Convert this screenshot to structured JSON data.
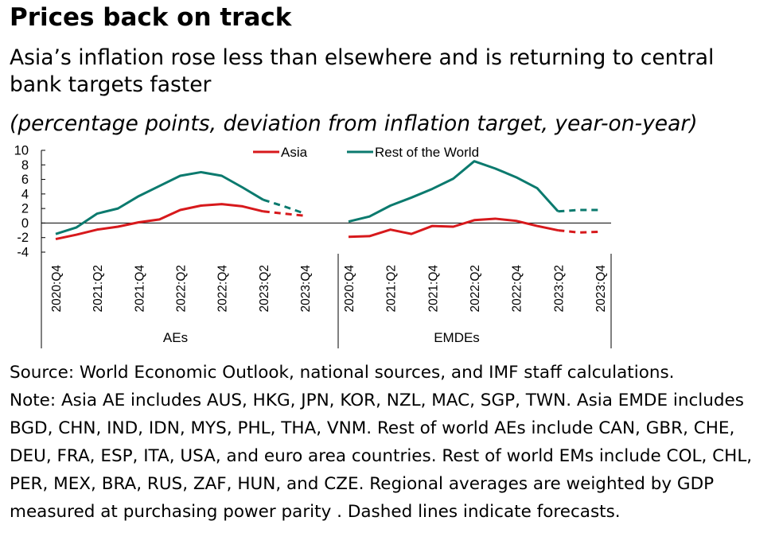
{
  "title": "Prices back on track",
  "subtitle": "Asia’s inflation rose less than elsewhere and is returning to central bank targets faster",
  "units": "(percentage points, deviation from inflation target, year-on-year)",
  "source": "Source: World Economic Outlook, national sources, and IMF staff calculations.",
  "note": "Note: Asia AE includes AUS, HKG, JPN, KOR, NZL, MAC, SGP, TWN. Asia EMDE includes BGD, CHN, IND, IDN, MYS, PHL, THA, VNM. Rest of world AEs include CAN, GBR, CHE, DEU, FRA, ESP, ITA, USA, and euro area countries. Rest of world EMs include COL, CHL, PER, MEX, BRA, RUS, ZAF, HUN, and CZE. Regional averages are weighted by GDP measured at purchasing power parity . Dashed lines indicate forecasts.",
  "chart_data": {
    "type": "line",
    "ylim": [
      -4,
      10
    ],
    "yticks": [
      10,
      8,
      6,
      4,
      2,
      0,
      -2,
      -4
    ],
    "legend": {
      "placement": "top",
      "entries": [
        "Asia",
        "Rest of the World"
      ]
    },
    "colors": {
      "Asia": "#d7191c",
      "Rest of the World": "#0b7a6e"
    },
    "quarters": [
      "2020:Q4",
      "2021:Q1",
      "2021:Q2",
      "2021:Q3",
      "2021:Q4",
      "2022:Q1",
      "2022:Q2",
      "2022:Q3",
      "2022:Q4",
      "2023:Q1",
      "2023:Q2",
      "2023:Q3",
      "2023:Q4"
    ],
    "tick_labels": [
      "2020:Q4",
      "2021:Q2",
      "2021:Q4",
      "2022:Q2",
      "2022:Q4",
      "2023:Q2",
      "2023:Q4"
    ],
    "forecast_from": "2023:Q2",
    "panels": [
      {
        "group": "AEs",
        "series": [
          {
            "name": "Asia",
            "values": [
              -2.2,
              -1.6,
              -0.9,
              -0.5,
              0.1,
              0.5,
              1.8,
              2.4,
              2.6,
              2.3,
              1.6,
              1.3,
              1.0
            ]
          },
          {
            "name": "Rest of the World",
            "values": [
              -1.5,
              -0.6,
              1.3,
              2.0,
              3.7,
              5.1,
              6.5,
              7.0,
              6.5,
              4.9,
              3.2,
              2.3,
              1.3
            ]
          }
        ]
      },
      {
        "group": "EMDEs",
        "series": [
          {
            "name": "Asia",
            "values": [
              -1.9,
              -1.8,
              -0.9,
              -1.5,
              -0.4,
              -0.5,
              0.4,
              0.6,
              0.3,
              -0.4,
              -1.0,
              -1.3,
              -1.2
            ]
          },
          {
            "name": "Rest of the World",
            "values": [
              0.2,
              0.9,
              2.4,
              3.5,
              4.7,
              6.1,
              8.5,
              7.5,
              6.3,
              4.8,
              1.6,
              1.8,
              1.8
            ]
          }
        ]
      }
    ]
  }
}
